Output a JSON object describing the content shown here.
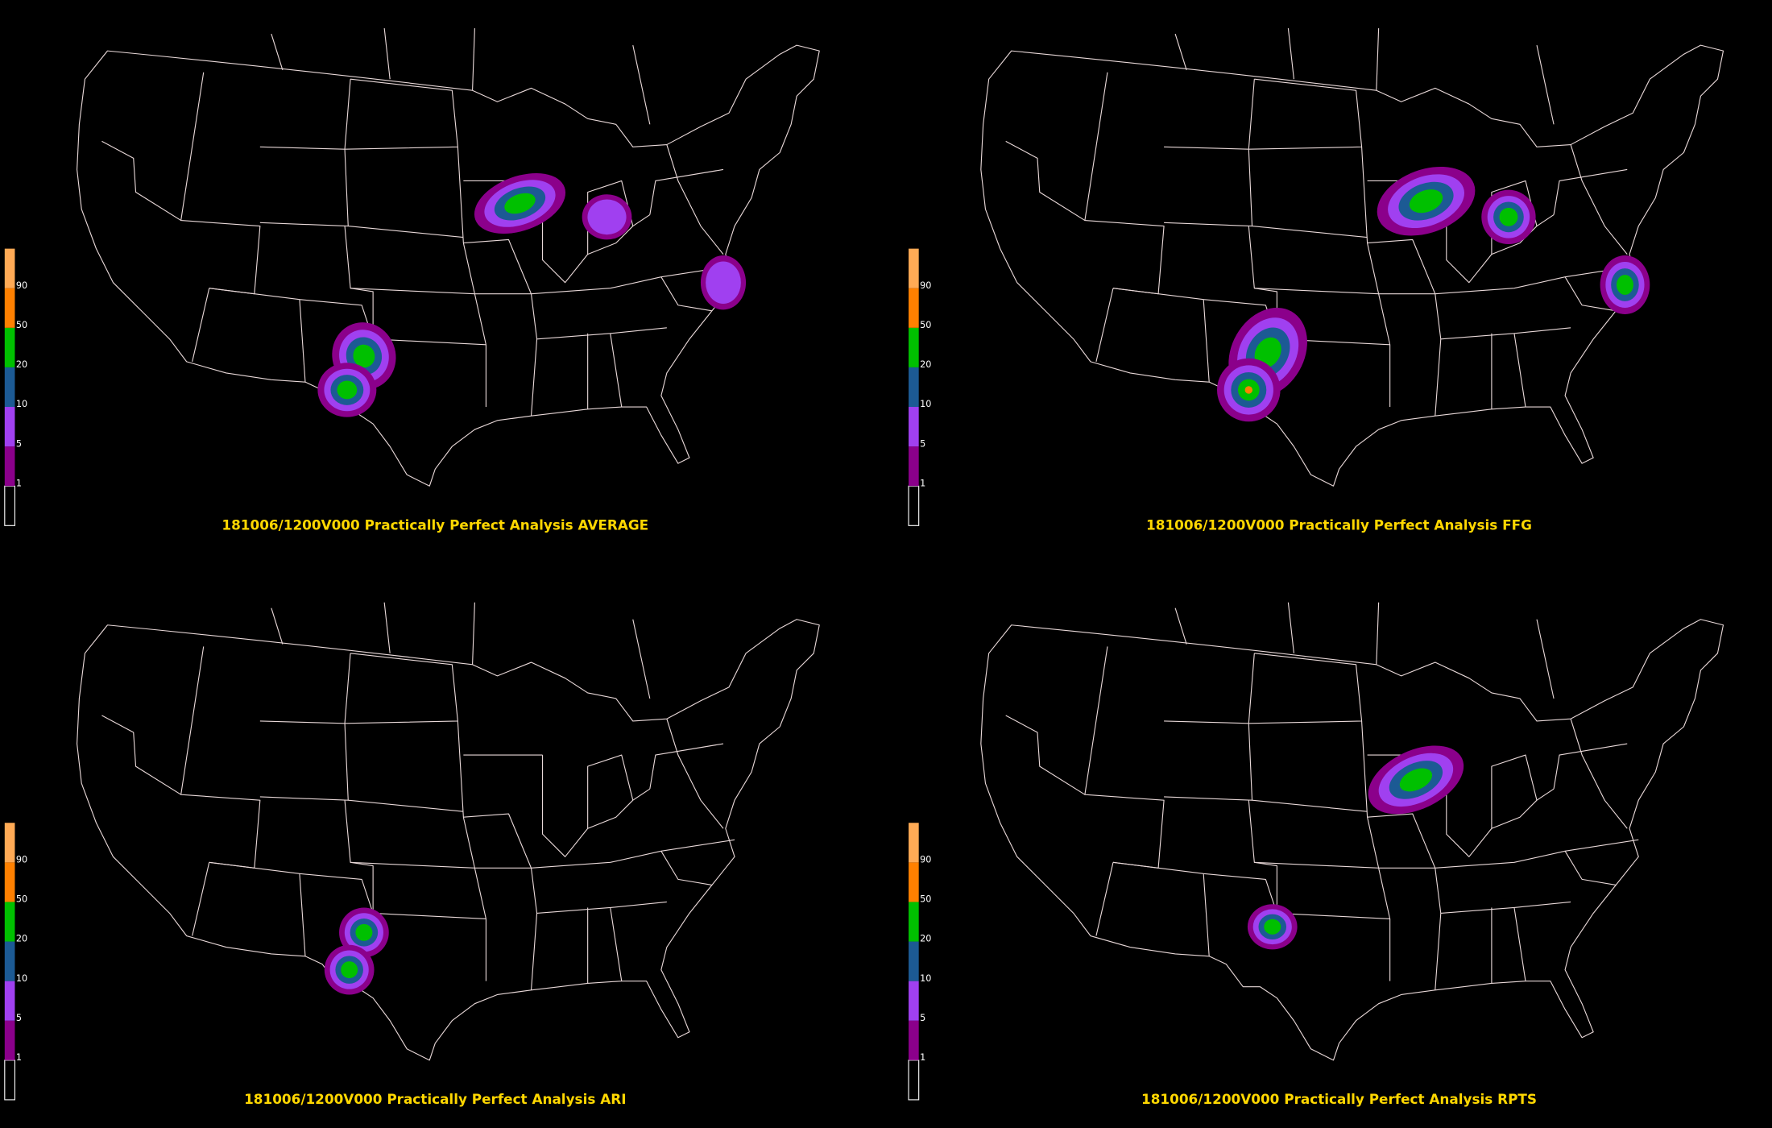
{
  "panels": [
    {
      "title": "181006/1200V000 Practically Perfect Analysis AVERAGE"
    },
    {
      "title": "181006/1200V000 Practically Perfect Analysis FFG"
    },
    {
      "title": "181006/1200V000 Practically Perfect Analysis ARI"
    },
    {
      "title": "181006/1200V000 Practically Perfect Analysis RPTS"
    }
  ],
  "legend": {
    "ticks": [
      1,
      5,
      10,
      20,
      50,
      90
    ],
    "colors": [
      "#000000",
      "#8b008b",
      "#a040f0",
      "#1c5a94",
      "#00c000",
      "#ff8000",
      "#ffaa55"
    ]
  }
}
